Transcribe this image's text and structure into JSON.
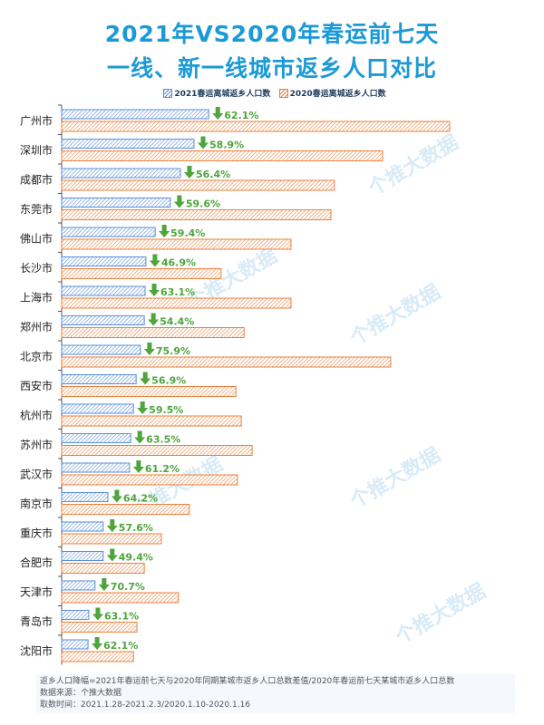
{
  "title_line1": "2021年VS2020年春运前七天",
  "title_line2": "一线、新一线城市返乡人口对比",
  "watermark": "个推大数据",
  "colors": {
    "title": "#1b9ad6",
    "series2021": "#5b8fd6",
    "series2020": "#e8823f",
    "arrow": "#4ea53c",
    "label": "#4ea53c"
  },
  "chart_data": {
    "type": "bar",
    "orientation": "horizontal",
    "title": "2021年VS2020年春运前七天 一线、新一线城市返乡人口对比",
    "value_unit": "relative index (2020 广州 = 100), estimated from bar lengths; no axis values shown",
    "xlim": [
      0,
      100
    ],
    "legend_position": "top",
    "categories": [
      "广州市",
      "深圳市",
      "成都市",
      "东莞市",
      "佛山市",
      "长沙市",
      "上海市",
      "郑州市",
      "北京市",
      "西安市",
      "杭州市",
      "苏州市",
      "武汉市",
      "南京市",
      "重庆市",
      "合肥市",
      "天津市",
      "青岛市",
      "沈阳市"
    ],
    "series": [
      {
        "name": "2021春运离城返乡人口数",
        "values": [
          37.9,
          34.1,
          30.6,
          28.0,
          24.1,
          21.7,
          21.5,
          21.3,
          20.3,
          19.2,
          18.5,
          17.8,
          17.5,
          11.9,
          10.7,
          10.7,
          8.6,
          7.0,
          6.8
        ]
      },
      {
        "name": "2020春运离城返乡人口数",
        "values": [
          100,
          82.7,
          70.3,
          69.4,
          59.1,
          41.1,
          59.1,
          47.0,
          84.8,
          44.9,
          46.3,
          49.1,
          45.3,
          32.9,
          25.7,
          21.3,
          30.1,
          19.4,
          18.5
        ]
      }
    ],
    "decline_labels": [
      "62.1%",
      "58.9%",
      "56.4%",
      "59.6%",
      "59.4%",
      "46.9%",
      "63.1%",
      "54.4%",
      "75.9%",
      "56.9%",
      "59.5%",
      "63.5%",
      "61.2%",
      "64.2%",
      "57.6%",
      "49.4%",
      "70.7%",
      "63.1%",
      "62.1%"
    ]
  },
  "notes": [
    "返乡人口降幅=2021年春运前七天与2020年同期某城市返乡人口总数差值/2020年春运前七天某城市返乡人口总数",
    "数据来源：个推大数据",
    "取数时间：2021.1.28-2021.2.3/2020.1.10-2020.1.16"
  ]
}
